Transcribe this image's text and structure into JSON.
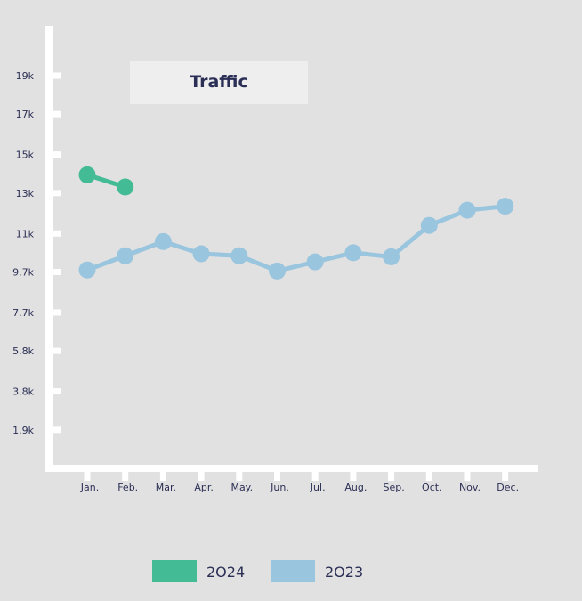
{
  "chart_data": {
    "type": "line",
    "title": "Traffic",
    "categories": [
      "Jan.",
      "Feb.",
      "Mar.",
      "Apr.",
      "May.",
      "Jun.",
      "Jul.",
      "Aug.",
      "Sep.",
      "Oct.",
      "Nov.",
      "Dec."
    ],
    "series": [
      {
        "name": "2O24",
        "color": "#43bb94",
        "values": [
          14500,
          13900,
          null,
          null,
          null,
          null,
          null,
          null,
          null,
          null,
          null,
          null
        ]
      },
      {
        "name": "2O23",
        "color": "#9ac5de",
        "values": [
          9800,
          10500,
          11200,
          10600,
          10500,
          9750,
          10200,
          10650,
          10450,
          12000,
          12750,
          12950
        ]
      }
    ],
    "y_ticks": [
      {
        "label": "1.9k",
        "value": 1900
      },
      {
        "label": "3.8k",
        "value": 3800
      },
      {
        "label": "5.8k",
        "value": 5800
      },
      {
        "label": "7.7k",
        "value": 7700
      },
      {
        "label": "9.7k",
        "value": 9700
      },
      {
        "label": "11k",
        "value": 11600
      },
      {
        "label": "13k",
        "value": 13600
      },
      {
        "label": "15k",
        "value": 15500
      },
      {
        "label": "17k",
        "value": 17500
      },
      {
        "label": "19k",
        "value": 19400
      }
    ],
    "ylim": [
      0,
      21000
    ],
    "grid": false,
    "legend_position": "bottom-center"
  }
}
